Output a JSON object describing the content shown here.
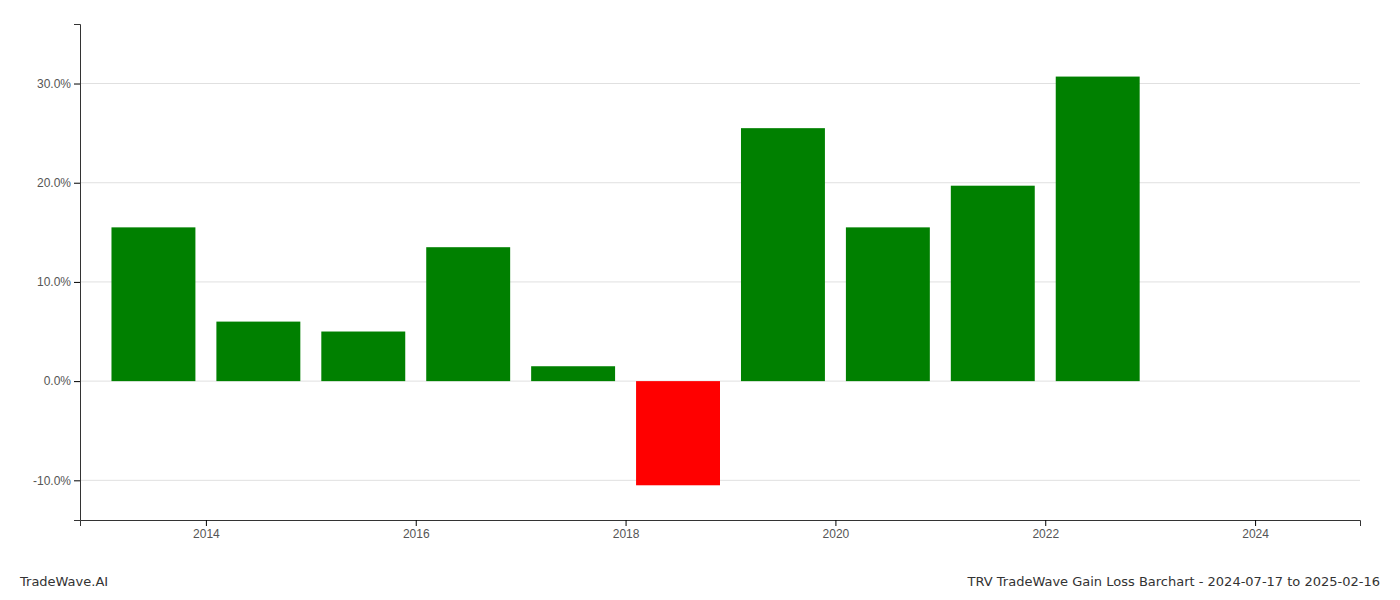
{
  "chart_data": {
    "type": "bar",
    "title": "TRV TradeWave Gain Loss Barchart - 2024-07-17 to 2025-02-16",
    "annotations": [
      "TradeWave.AI"
    ],
    "x": [
      2013.5,
      2014.5,
      2015.5,
      2016.5,
      2017.5,
      2018.5,
      2019.5,
      2020.5,
      2021.5,
      2022.5
    ],
    "values": [
      0.155,
      0.06,
      0.05,
      0.135,
      0.015,
      -0.105,
      0.255,
      0.155,
      0.197,
      0.307
    ],
    "colors": [
      "#008000",
      "#008000",
      "#008000",
      "#008000",
      "#008000",
      "#ff0000",
      "#008000",
      "#008000",
      "#008000",
      "#008000"
    ],
    "xlim": [
      2012.8,
      2025.0
    ],
    "xticks": [
      2014,
      2016,
      2018,
      2020,
      2022,
      2024
    ],
    "ylim": [
      -0.14,
      0.36
    ],
    "yticks": [
      {
        "value": -0.1,
        "label": "-10.0%"
      },
      {
        "value": 0.0,
        "label": "0.0%"
      },
      {
        "value": 0.1,
        "label": "10.0%"
      },
      {
        "value": 0.2,
        "label": "20.0%"
      },
      {
        "value": 0.3,
        "label": "30.0%"
      }
    ],
    "grid": true
  }
}
